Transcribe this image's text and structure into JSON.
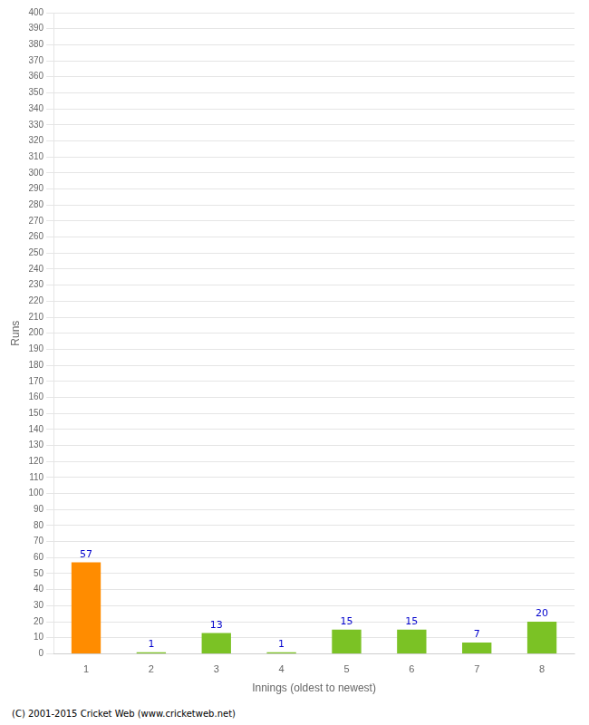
{
  "chart_data": {
    "type": "bar",
    "categories": [
      1,
      2,
      3,
      4,
      5,
      6,
      7,
      8
    ],
    "values": [
      57,
      1,
      13,
      1,
      15,
      15,
      7,
      20
    ],
    "colors": [
      "#FF8C00",
      "#7BC225",
      "#7BC225",
      "#7BC225",
      "#7BC225",
      "#7BC225",
      "#7BC225",
      "#7BC225"
    ],
    "xlabel": "Innings (oldest to newest)",
    "ylabel": "Runs",
    "ylim": [
      0,
      400
    ],
    "yticks": [
      0,
      10,
      20,
      30,
      40,
      50,
      60,
      70,
      80,
      90,
      100,
      110,
      120,
      130,
      140,
      150,
      160,
      170,
      180,
      190,
      200,
      210,
      220,
      230,
      240,
      250,
      260,
      270,
      280,
      290,
      300,
      310,
      320,
      330,
      340,
      350,
      360,
      370,
      380,
      390,
      400
    ],
    "grid": true,
    "data_labels": true,
    "footer": "(C) 2001-2015 Cricket Web (www.cricketweb.net)"
  }
}
